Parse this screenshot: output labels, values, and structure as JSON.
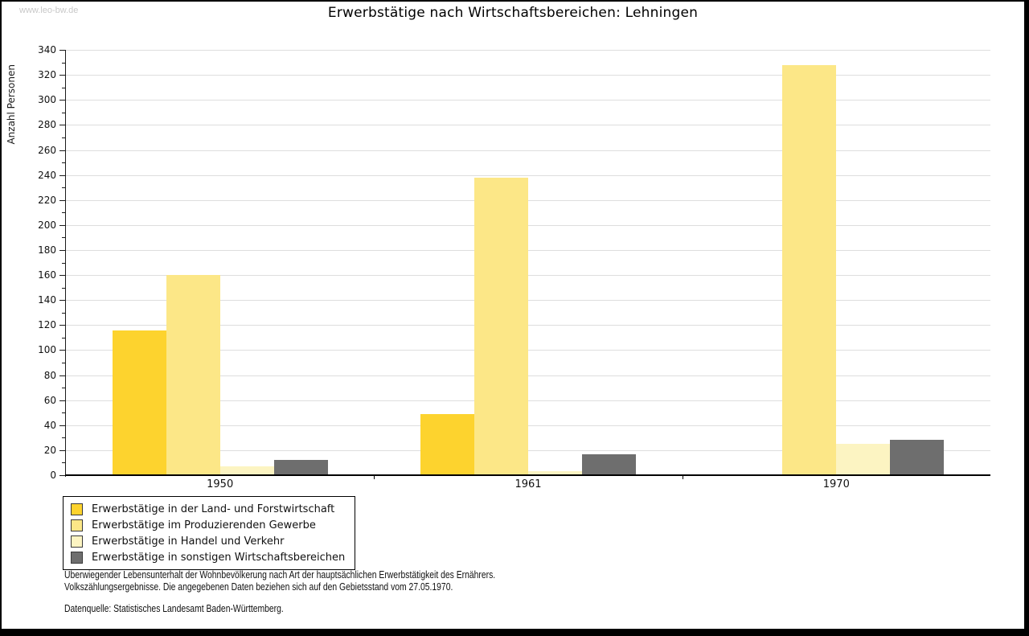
{
  "page": {
    "watermark": "www.leo-bw.de",
    "title": "Erwerbstätige nach Wirtschaftsbereichen: Lehningen"
  },
  "chart_data": {
    "type": "bar",
    "title": "Erwerbstätige nach Wirtschaftsbereichen: Lehningen",
    "xlabel": "",
    "ylabel": "Anzahl Personen",
    "categories": [
      "1950",
      "1961",
      "1970"
    ],
    "series": [
      {
        "name": "Erwerbstätige in der Land- und Forstwirtschaft",
        "color": "#fdd32e",
        "values": [
          116,
          49,
          0
        ]
      },
      {
        "name": "Erwerbstätige im Produzierenden Gewerbe",
        "color": "#fce787",
        "values": [
          160,
          238,
          328
        ]
      },
      {
        "name": "Erwerbstätige in Handel und Verkehr",
        "color": "#fcf4c2",
        "values": [
          7,
          3,
          25
        ]
      },
      {
        "name": "Erwerbstätige in sonstigen Wirtschaftsbereichen",
        "color": "#6e6e6e",
        "values": [
          12,
          17,
          28
        ]
      }
    ],
    "ylim": [
      0,
      340
    ],
    "ytick_step": 20,
    "yminor_step": 10,
    "grid": true,
    "legend_position": "bottom-left"
  },
  "footer": {
    "line1": "Überwiegender Lebensunterhalt der Wohnbevölkerung nach Art der hauptsächlichen Erwerbstätigkeit des Ernährers.",
    "line2": "Volkszählungsergebnisse. Die angegebenen Daten beziehen sich auf den Gebietsstand vom 27.05.1970.",
    "source": "Datenquelle: Statistisches Landesamt Baden-Württemberg."
  },
  "colors": {
    "grid": "#dedede",
    "axis": "#1a1a1a",
    "watermark": "#c8c8c8"
  }
}
